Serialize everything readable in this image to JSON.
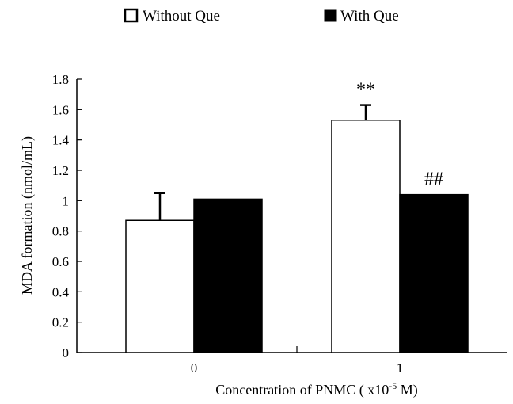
{
  "chart_data": {
    "type": "bar",
    "categories": [
      "0",
      "1"
    ],
    "series": [
      {
        "name": "Without Que",
        "values": [
          0.87,
          1.53
        ],
        "errors": [
          0.18,
          0.1
        ],
        "color": "#ffffff"
      },
      {
        "name": "With Que",
        "values": [
          1.01,
          1.04
        ],
        "color": "#000000"
      }
    ],
    "yticks": [
      "0",
      "0.2",
      "0.4",
      "0.6",
      "0.8",
      "1",
      "1.2",
      "1.4",
      "1.6",
      "1.8"
    ],
    "ylim": [
      0,
      1.8
    ],
    "ylabel": "MDA formation (nmol/mL)",
    "xlabel": {
      "prefix": "Concentration of PNMC ( x10",
      "exponent": "-5",
      "suffix": " M)"
    },
    "annotations": [
      {
        "text": "**",
        "category": "1",
        "series": "Without Que"
      },
      {
        "text": "##",
        "category": "1",
        "series": "With Que"
      }
    ],
    "legend_position": "top",
    "grid": false
  }
}
